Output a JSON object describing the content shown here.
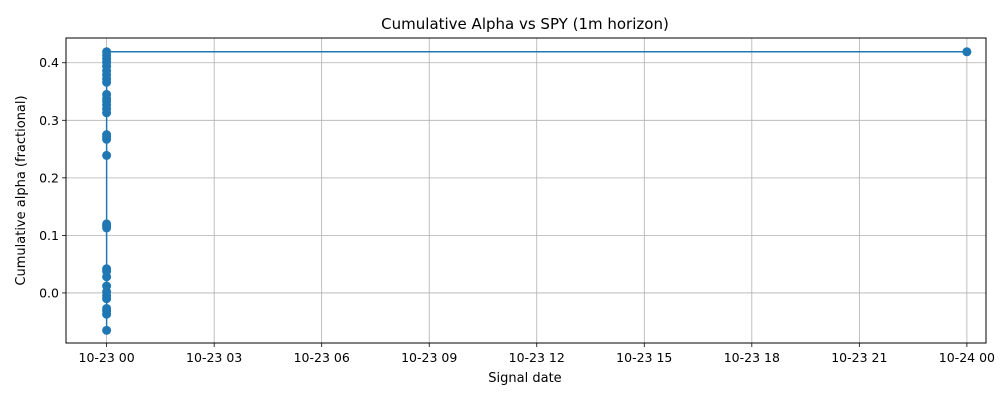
{
  "chart_data": {
    "type": "line",
    "title": "Cumulative Alpha vs SPY (1m horizon)",
    "xlabel": "Signal date",
    "ylabel": "Cumulative alpha (fractional)",
    "grid": true,
    "x_ticks": [
      "10-23 00",
      "10-23 03",
      "10-23 06",
      "10-23 09",
      "10-23 12",
      "10-23 15",
      "10-23 18",
      "10-23 21",
      "10-24 00"
    ],
    "y_ticks": [
      "0.0",
      "0.1",
      "0.2",
      "0.3",
      "0.4"
    ],
    "xlim": [
      "2025-10-22T22:52",
      "2025-10-24T00:32"
    ],
    "ylim": [
      -0.087,
      0.443
    ],
    "series": [
      {
        "color": "#1f77b4",
        "marker": "circle",
        "points": [
          {
            "x": "2025-10-23T00:00",
            "y": -0.065
          },
          {
            "x": "2025-10-23T00:00",
            "y": -0.037
          },
          {
            "x": "2025-10-23T00:00",
            "y": -0.031
          },
          {
            "x": "2025-10-23T00:00",
            "y": -0.027
          },
          {
            "x": "2025-10-23T00:00",
            "y": -0.01
          },
          {
            "x": "2025-10-23T00:00",
            "y": -0.005
          },
          {
            "x": "2025-10-23T00:00",
            "y": 0.002
          },
          {
            "x": "2025-10-23T00:00",
            "y": 0.012
          },
          {
            "x": "2025-10-23T00:00",
            "y": 0.028
          },
          {
            "x": "2025-10-23T00:00",
            "y": 0.038
          },
          {
            "x": "2025-10-23T00:00",
            "y": 0.042
          },
          {
            "x": "2025-10-23T00:00",
            "y": 0.113
          },
          {
            "x": "2025-10-23T00:00",
            "y": 0.117
          },
          {
            "x": "2025-10-23T00:00",
            "y": 0.12
          },
          {
            "x": "2025-10-23T00:00",
            "y": 0.239
          },
          {
            "x": "2025-10-23T00:00",
            "y": 0.267
          },
          {
            "x": "2025-10-23T00:00",
            "y": 0.271
          },
          {
            "x": "2025-10-23T00:00",
            "y": 0.275
          },
          {
            "x": "2025-10-23T00:00",
            "y": 0.313
          },
          {
            "x": "2025-10-23T00:00",
            "y": 0.32
          },
          {
            "x": "2025-10-23T00:00",
            "y": 0.327
          },
          {
            "x": "2025-10-23T00:00",
            "y": 0.333
          },
          {
            "x": "2025-10-23T00:00",
            "y": 0.338
          },
          {
            "x": "2025-10-23T00:00",
            "y": 0.345
          },
          {
            "x": "2025-10-23T00:00",
            "y": 0.366
          },
          {
            "x": "2025-10-23T00:00",
            "y": 0.372
          },
          {
            "x": "2025-10-23T00:00",
            "y": 0.379
          },
          {
            "x": "2025-10-23T00:00",
            "y": 0.386
          },
          {
            "x": "2025-10-23T00:00",
            "y": 0.394
          },
          {
            "x": "2025-10-23T00:00",
            "y": 0.401
          },
          {
            "x": "2025-10-23T00:00",
            "y": 0.407
          },
          {
            "x": "2025-10-23T00:00",
            "y": 0.413
          },
          {
            "x": "2025-10-23T00:00",
            "y": 0.419
          },
          {
            "x": "2025-10-24T00:00",
            "y": 0.419
          }
        ]
      }
    ]
  }
}
